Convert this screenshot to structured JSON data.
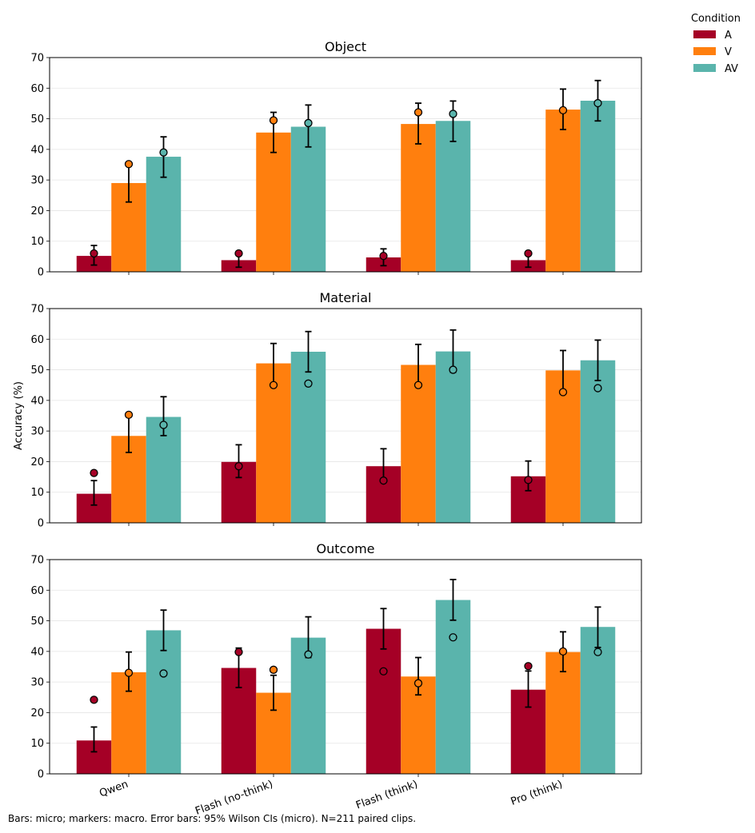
{
  "chart_data": [
    {
      "type": "bar",
      "title": "Object",
      "categories": [
        "Qwen",
        "Flash (no-think)",
        "Flash (think)",
        "Pro (think)"
      ],
      "ylim": [
        0,
        70
      ],
      "yticks": [
        0,
        10,
        20,
        30,
        40,
        50,
        60,
        70
      ],
      "grid": true,
      "series": [
        {
          "name": "A",
          "values": [
            5.2,
            3.8,
            4.7,
            3.8
          ],
          "markers": [
            6.0,
            6.0,
            5.2,
            6.0
          ],
          "err_low": [
            2.2,
            1.5,
            2.0,
            1.5
          ],
          "err_high": [
            8.6,
            6.0,
            7.5,
            6.0
          ]
        },
        {
          "name": "V",
          "values": [
            29.0,
            45.5,
            48.3,
            53.0
          ],
          "markers": [
            35.2,
            49.5,
            52.1,
            52.8
          ],
          "err_low": [
            22.8,
            39.0,
            41.8,
            46.5
          ],
          "err_high": [
            35.0,
            52.1,
            55.1,
            59.7
          ]
        },
        {
          "name": "AV",
          "values": [
            37.6,
            47.4,
            49.3,
            55.9
          ],
          "markers": [
            39.0,
            48.6,
            51.6,
            55.1
          ],
          "err_low": [
            30.9,
            40.8,
            42.6,
            49.3
          ],
          "err_high": [
            44.1,
            54.5,
            55.8,
            62.5
          ]
        }
      ]
    },
    {
      "type": "bar",
      "title": "Material",
      "ylabel": "Accuracy (%)",
      "categories": [
        "Qwen",
        "Flash (no-think)",
        "Flash (think)",
        "Pro (think)"
      ],
      "ylim": [
        0,
        70
      ],
      "yticks": [
        0,
        10,
        20,
        30,
        40,
        50,
        60,
        70
      ],
      "grid": true,
      "series": [
        {
          "name": "A",
          "values": [
            9.5,
            19.9,
            18.5,
            15.2
          ],
          "markers": [
            16.3,
            18.5,
            13.8,
            14.0
          ],
          "err_low": [
            5.8,
            14.8,
            13.5,
            10.5
          ],
          "err_high": [
            13.8,
            25.5,
            24.2,
            20.2
          ]
        },
        {
          "name": "V",
          "values": [
            28.4,
            52.1,
            51.6,
            49.8
          ],
          "markers": [
            35.3,
            45.0,
            45.0,
            42.7
          ],
          "err_low": [
            23.0,
            45.3,
            45.0,
            43.2
          ],
          "err_high": [
            35.0,
            58.6,
            58.3,
            56.3
          ]
        },
        {
          "name": "AV",
          "values": [
            34.6,
            55.9,
            56.0,
            53.1
          ],
          "markers": [
            32.0,
            45.5,
            50.0,
            44.0
          ],
          "err_low": [
            28.5,
            49.3,
            49.2,
            46.5
          ],
          "err_high": [
            41.2,
            62.5,
            63.0,
            59.7
          ]
        }
      ]
    },
    {
      "type": "bar",
      "title": "Outcome",
      "categories": [
        "Qwen",
        "Flash (no-think)",
        "Flash (think)",
        "Pro (think)"
      ],
      "ylim": [
        0,
        70
      ],
      "yticks": [
        0,
        10,
        20,
        30,
        40,
        50,
        60,
        70
      ],
      "grid": true,
      "series": [
        {
          "name": "A",
          "values": [
            10.9,
            34.6,
            47.4,
            27.5
          ],
          "markers": [
            24.2,
            39.8,
            33.5,
            35.2
          ],
          "err_low": [
            7.2,
            28.2,
            40.8,
            21.8
          ],
          "err_high": [
            15.3,
            41.1,
            54.0,
            33.6
          ]
        },
        {
          "name": "V",
          "values": [
            33.2,
            26.5,
            31.8,
            39.8
          ],
          "markers": [
            33.0,
            34.0,
            29.6,
            40.0
          ],
          "err_low": [
            27.0,
            20.8,
            25.8,
            33.4
          ],
          "err_high": [
            39.8,
            32.2,
            38.0,
            46.4
          ]
        },
        {
          "name": "AV",
          "values": [
            46.9,
            44.5,
            56.8,
            48.0
          ],
          "markers": [
            32.8,
            39.0,
            44.6,
            39.8
          ],
          "err_low": [
            40.3,
            38.0,
            50.2,
            41.3
          ],
          "err_high": [
            53.5,
            51.3,
            63.5,
            54.5
          ]
        }
      ]
    }
  ],
  "legend": {
    "title": "Condition",
    "placement": "top-right outside",
    "items": [
      {
        "label": "A",
        "color": "#a50026"
      },
      {
        "label": "V",
        "color": "#ff7f0e"
      },
      {
        "label": "AV",
        "color": "#5ab4ac"
      }
    ]
  },
  "caption": "Bars: micro; markers: macro. Error bars: 95% Wilson CIs (micro). N=211 paired clips."
}
